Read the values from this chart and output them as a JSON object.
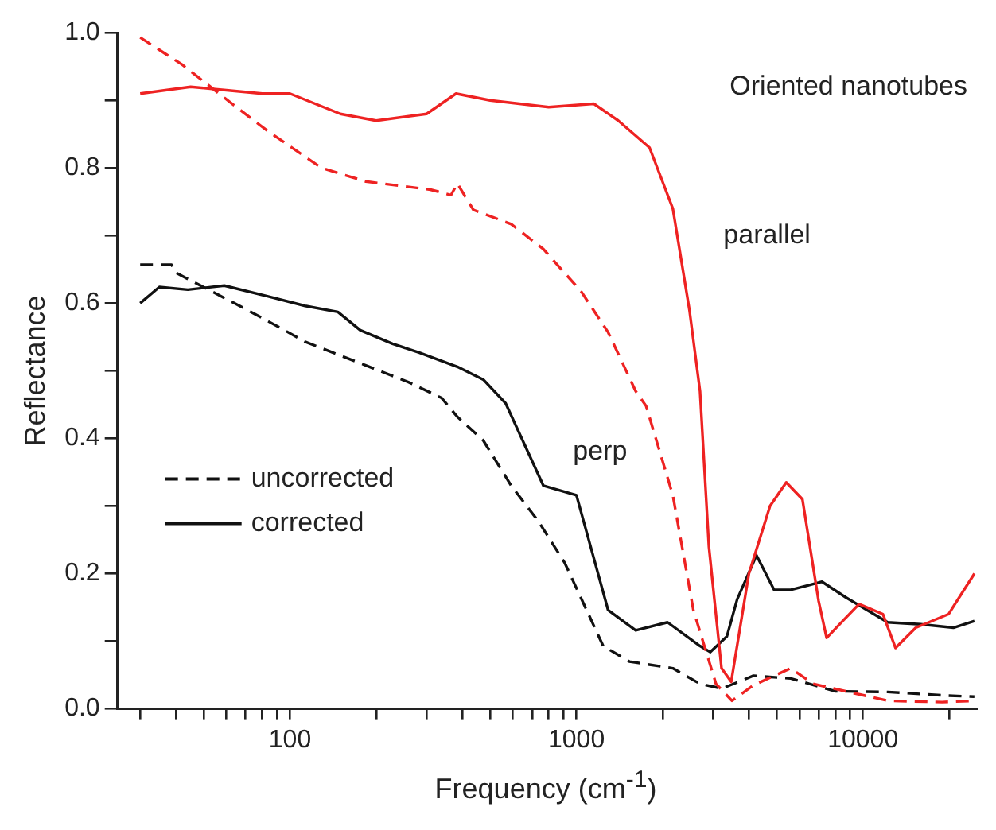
{
  "chart_data": {
    "type": "line",
    "xlabel": "Frequency (cm$^{-1}$)",
    "ylabel": "Reflectance",
    "log": "x",
    "xlim": [
      25,
      25000
    ],
    "ylim": [
      0,
      1
    ],
    "xticks": [
      {
        "value": 30,
        "label": null
      },
      {
        "value": 40,
        "label": null
      },
      {
        "value": 50,
        "label": null
      },
      {
        "value": 60,
        "label": null
      },
      {
        "value": 70,
        "label": null
      },
      {
        "value": 80,
        "label": null
      },
      {
        "value": 90,
        "label": null
      },
      100,
      {
        "value": 200,
        "label": null
      },
      {
        "value": 300,
        "label": null
      },
      {
        "value": 400,
        "label": null
      },
      {
        "value": 500,
        "label": null
      },
      {
        "value": 600,
        "label": null
      },
      {
        "value": 700,
        "label": null
      },
      {
        "value": 800,
        "label": null
      },
      {
        "value": 900,
        "label": null
      },
      1000,
      {
        "value": 2000,
        "label": null
      },
      {
        "value": 3000,
        "label": null
      },
      {
        "value": 4000,
        "label": null
      },
      {
        "value": 5000,
        "label": null
      },
      {
        "value": 6000,
        "label": null
      },
      {
        "value": 7000,
        "label": null
      },
      {
        "value": 8000,
        "label": null
      },
      {
        "value": 9000,
        "label": null
      },
      10000,
      {
        "value": 20000,
        "label": null
      }
    ],
    "yticks": [
      {
        "value": 0,
        "label": "0.0"
      },
      {
        "value": 0.1,
        "label": null
      },
      {
        "value": 0.2,
        "label": "0.2"
      },
      {
        "value": 0.3,
        "label": null
      },
      {
        "value": 0.4,
        "label": "0.4"
      },
      {
        "value": 0.5,
        "label": null
      },
      {
        "value": 0.6,
        "label": "0.6"
      },
      {
        "value": 0.7,
        "label": null
      },
      {
        "value": 0.8,
        "label": "0.8"
      },
      {
        "value": 0.9,
        "label": null
      },
      {
        "value": 1.0,
        "label": "1.0"
      }
    ],
    "grid": false,
    "legend": "left",
    "marker": "none",
    "annotations": [
      "Oriented nanotubes",
      "parallel",
      "perp"
    ],
    "series": [
      {
        "color": "#ee2222",
        "line_style": "solid",
        "x": [
          30,
          45,
          60,
          80,
          100,
          150,
          200,
          300,
          380,
          500,
          800,
          1150,
          1400,
          1800,
          2170,
          2480,
          2700,
          2900,
          3210,
          3470,
          4000,
          4740,
          5400,
          6150,
          7000,
          7470,
          8500,
          9700,
          11750,
          13000,
          15300,
          19900,
          24500
        ],
        "values": [
          0.91,
          0.92,
          0.915,
          0.91,
          0.91,
          0.88,
          0.87,
          0.88,
          0.91,
          0.9,
          0.89,
          0.895,
          0.87,
          0.83,
          0.74,
          0.59,
          0.47,
          0.24,
          0.06,
          0.04,
          0.2,
          0.3,
          0.335,
          0.31,
          0.16,
          0.105,
          0.13,
          0.155,
          0.14,
          0.09,
          0.12,
          0.14,
          0.2
        ]
      },
      {
        "color": "#ee2222",
        "line_style": "dashed",
        "x": [
          30,
          42,
          65,
          84,
          129,
          184,
          309,
          365,
          384,
          437,
          592,
          767,
          1040,
          1290,
          1610,
          1750,
          2170,
          2560,
          3070,
          3490,
          4150,
          5600,
          6700,
          8700,
          12200,
          18900,
          24500
        ],
        "values": [
          0.993,
          0.953,
          0.89,
          0.854,
          0.8,
          0.78,
          0.768,
          0.76,
          0.777,
          0.738,
          0.717,
          0.68,
          0.617,
          0.557,
          0.47,
          0.448,
          0.316,
          0.146,
          0.037,
          0.012,
          0.035,
          0.06,
          0.037,
          0.026,
          0.012,
          0.01,
          0.012
        ]
      },
      {
        "name": "uncorrected",
        "color": "#111111",
        "line_style": "dashed",
        "x": [
          30,
          38.6,
          40,
          71,
          92,
          113,
          141,
          184,
          260,
          338,
          384,
          473,
          592,
          735,
          910,
          1240,
          1530,
          2170,
          2700,
          3220,
          4150,
          5600,
          8000,
          12200,
          18900,
          24500
        ],
        "values": [
          0.657,
          0.657,
          0.645,
          0.59,
          0.564,
          0.543,
          0.527,
          0.508,
          0.483,
          0.46,
          0.432,
          0.397,
          0.33,
          0.278,
          0.216,
          0.093,
          0.07,
          0.06,
          0.037,
          0.03,
          0.049,
          0.045,
          0.026,
          0.025,
          0.02,
          0.018
        ]
      },
      {
        "name": "corrected",
        "color": "#111111",
        "line_style": "solid",
        "x": [
          30,
          35,
          44,
          59,
          84,
          113,
          147,
          176,
          228,
          282,
          384,
          473,
          566,
          767,
          1000,
          1290,
          1610,
          2080,
          2700,
          2930,
          3350,
          3640,
          4250,
          4900,
          5600,
          7200,
          8700,
          12200,
          15900,
          20700,
          24500
        ],
        "values": [
          0.6,
          0.624,
          0.62,
          0.626,
          0.61,
          0.596,
          0.587,
          0.56,
          0.54,
          0.527,
          0.506,
          0.487,
          0.452,
          0.33,
          0.316,
          0.146,
          0.116,
          0.128,
          0.093,
          0.084,
          0.107,
          0.162,
          0.227,
          0.176,
          0.176,
          0.188,
          0.165,
          0.128,
          0.125,
          0.12,
          0.13
        ]
      }
    ]
  }
}
